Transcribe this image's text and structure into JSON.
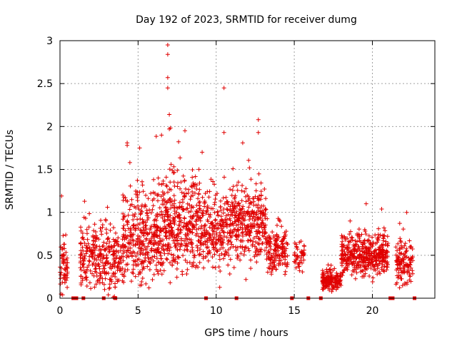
{
  "chart_data": {
    "type": "scatter",
    "title": "Day 192 of 2023, SRMTID for receiver dumg",
    "xlabel": "GPS time / hours",
    "ylabel": "SRMTID / TECUs",
    "xlim": [
      0,
      24
    ],
    "ylim": [
      0,
      3
    ],
    "xticks": [
      0,
      5,
      10,
      15,
      20
    ],
    "xtick_labels": [
      "0",
      "5",
      "10",
      "15",
      "20"
    ],
    "yticks": [
      0,
      0.5,
      1,
      1.5,
      2,
      2.5,
      3
    ],
    "ytick_labels": [
      "0",
      "0.5",
      "1",
      "1.5",
      "2",
      "2.5",
      "3"
    ],
    "grid": true,
    "marker": "+",
    "color": "#e00000",
    "point_count_approx": 2600,
    "series": [
      {
        "name": "SRMTID",
        "activity_profile": [
          {
            "x_start": 0.0,
            "x_end": 0.5,
            "center": 0.35,
            "spread": 0.35,
            "density": 1.0
          },
          {
            "x_start": 1.3,
            "x_end": 2.2,
            "center": 0.5,
            "spread": 0.4,
            "density": 1.0
          },
          {
            "x_start": 2.2,
            "x_end": 4.0,
            "center": 0.45,
            "spread": 0.4,
            "density": 1.0
          },
          {
            "x_start": 4.0,
            "x_end": 6.5,
            "center": 0.7,
            "spread": 0.55,
            "density": 1.3
          },
          {
            "x_start": 6.5,
            "x_end": 9.0,
            "center": 0.85,
            "spread": 0.6,
            "density": 1.4
          },
          {
            "x_start": 9.0,
            "x_end": 11.0,
            "center": 0.8,
            "spread": 0.5,
            "density": 1.1
          },
          {
            "x_start": 11.0,
            "x_end": 13.2,
            "center": 0.85,
            "spread": 0.45,
            "density": 1.3
          },
          {
            "x_start": 13.2,
            "x_end": 14.6,
            "center": 0.55,
            "spread": 0.3,
            "density": 1.0
          },
          {
            "x_start": 15.0,
            "x_end": 15.7,
            "center": 0.5,
            "spread": 0.2,
            "density": 0.6
          },
          {
            "x_start": 16.8,
            "x_end": 18.0,
            "center": 0.2,
            "spread": 0.12,
            "density": 1.2
          },
          {
            "x_start": 18.0,
            "x_end": 21.0,
            "center": 0.5,
            "spread": 0.25,
            "density": 1.3
          },
          {
            "x_start": 21.5,
            "x_end": 22.6,
            "center": 0.4,
            "spread": 0.25,
            "density": 1.0
          }
        ],
        "notable_points": [
          {
            "x": 6.9,
            "y": 2.95
          },
          {
            "x": 6.9,
            "y": 2.84
          },
          {
            "x": 6.9,
            "y": 2.57
          },
          {
            "x": 6.9,
            "y": 2.45
          },
          {
            "x": 7.0,
            "y": 2.14
          },
          {
            "x": 10.5,
            "y": 2.45
          },
          {
            "x": 12.7,
            "y": 2.08
          },
          {
            "x": 6.5,
            "y": 1.9
          },
          {
            "x": 7.0,
            "y": 1.97
          },
          {
            "x": 8.0,
            "y": 1.95
          },
          {
            "x": 10.5,
            "y": 1.93
          },
          {
            "x": 12.7,
            "y": 1.93
          },
          {
            "x": 4.3,
            "y": 1.81
          },
          {
            "x": 4.3,
            "y": 1.78
          },
          {
            "x": 5.1,
            "y": 1.75
          },
          {
            "x": 9.1,
            "y": 1.7
          },
          {
            "x": 11.7,
            "y": 1.81
          },
          {
            "x": 19.6,
            "y": 1.1
          },
          {
            "x": 22.2,
            "y": 1.0
          },
          {
            "x": 0.1,
            "y": 1.19
          }
        ]
      }
    ],
    "zero_line_markers_x": [
      0.85,
      1.05,
      1.5,
      2.8,
      3.55,
      9.35,
      11.3,
      14.85,
      15.9,
      16.7,
      21.15,
      21.3,
      22.7
    ]
  }
}
